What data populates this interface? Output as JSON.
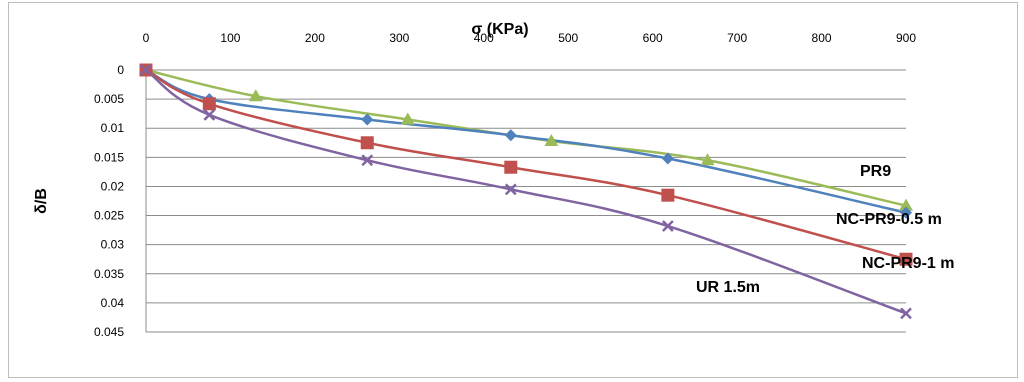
{
  "chart_data": {
    "type": "line",
    "xlabel": "σ (KPa)",
    "ylabel": "δ/B",
    "xlim": [
      0,
      900
    ],
    "ylim": [
      0,
      0.045
    ],
    "x_ticks": [
      "0",
      "100",
      "200",
      "300",
      "400",
      "500",
      "600",
      "700",
      "800",
      "900"
    ],
    "y_ticks": [
      "0",
      "0.005",
      "0.01",
      "0.015",
      "0.02",
      "0.025",
      "0.03",
      "0.035",
      "0.04",
      "0.045"
    ],
    "y_axis_inverted": true,
    "grid": "horizontal",
    "series": [
      {
        "name": "PR9",
        "color": "#9BBB59",
        "marker": "triangle",
        "points": [
          [
            0,
            0
          ],
          [
            130,
            0.0045
          ],
          [
            310,
            0.0085
          ],
          [
            480,
            0.0122
          ],
          [
            665,
            0.0155
          ],
          [
            900,
            0.0233
          ]
        ]
      },
      {
        "name": "NC-PR9-0.5 m",
        "color": "#4F81BD",
        "marker": "diamond",
        "points": [
          [
            0,
            0
          ],
          [
            75,
            0.005
          ],
          [
            262,
            0.0085
          ],
          [
            432,
            0.0112
          ],
          [
            618,
            0.0152
          ],
          [
            900,
            0.0245
          ]
        ]
      },
      {
        "name": "NC-PR9-1 m",
        "color": "#C0504D",
        "marker": "square",
        "points": [
          [
            0,
            0
          ],
          [
            75,
            0.0058
          ],
          [
            262,
            0.0125
          ],
          [
            432,
            0.0167
          ],
          [
            618,
            0.0215
          ],
          [
            900,
            0.0325
          ]
        ]
      },
      {
        "name": "UR 1.5m",
        "color": "#8064A2",
        "marker": "x",
        "points": [
          [
            0,
            0
          ],
          [
            75,
            0.0077
          ],
          [
            262,
            0.0155
          ],
          [
            432,
            0.0205
          ],
          [
            618,
            0.0268
          ],
          [
            900,
            0.0418
          ]
        ]
      }
    ]
  }
}
